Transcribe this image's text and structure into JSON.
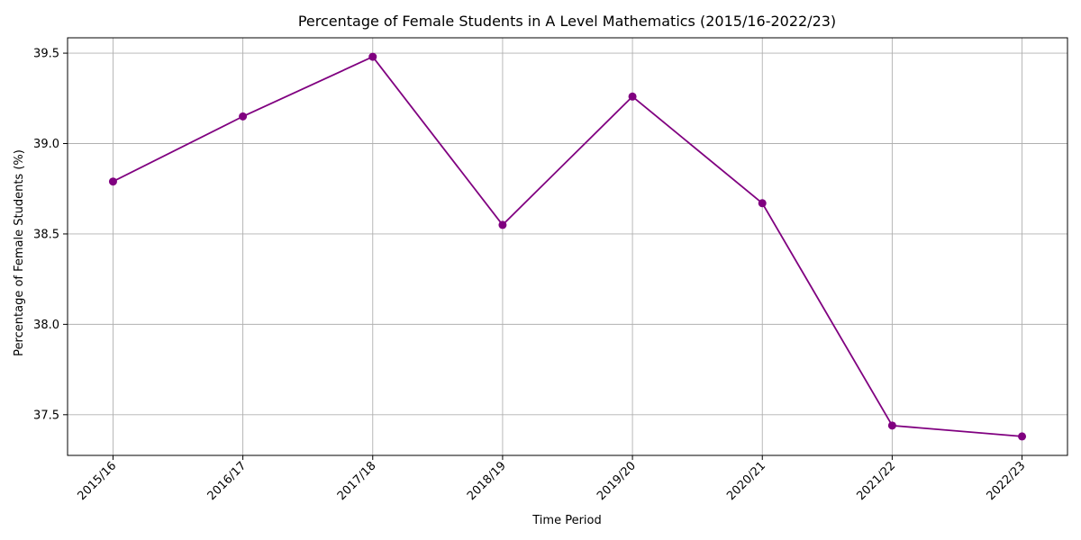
{
  "chart_data": {
    "type": "line",
    "title": "Percentage of Female Students in A Level Mathematics (2015/16-2022/23)",
    "xlabel": "Time Period",
    "ylabel": "Percentage of Female Students (%)",
    "categories": [
      "2015/16",
      "2016/17",
      "2017/18",
      "2018/19",
      "2019/20",
      "2020/21",
      "2021/22",
      "2022/23"
    ],
    "series": [
      {
        "values": [
          38.79,
          39.15,
          39.48,
          38.55,
          39.26,
          38.67,
          37.44,
          37.38
        ]
      }
    ],
    "ylim": [
      37.275,
      39.585
    ],
    "yticks": [
      37.5,
      38.0,
      38.5,
      39.0,
      39.5
    ],
    "ytick_labels": [
      "37.5",
      "38.0",
      "38.5",
      "39.0",
      "39.5"
    ],
    "grid": true,
    "line_color": "#800080",
    "marker": "circle",
    "xtick_rotation": 45
  }
}
